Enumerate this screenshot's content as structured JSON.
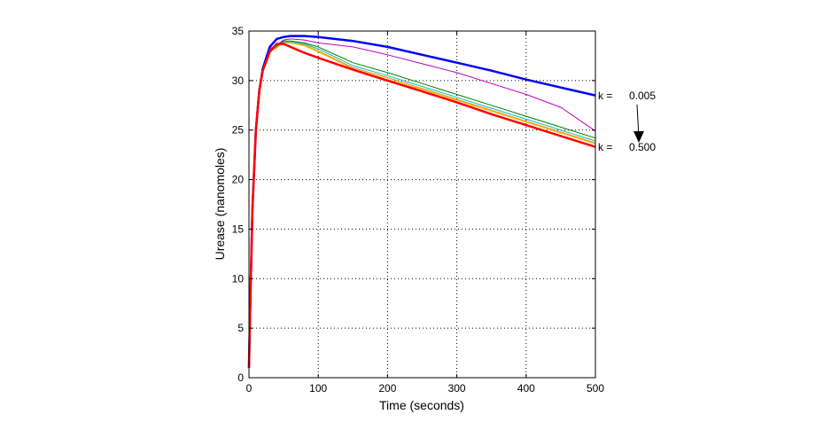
{
  "chart_data": {
    "type": "line",
    "title": "",
    "xlabel": "Time (seconds)",
    "ylabel": "Urease (nanomoles)",
    "xlim": [
      0,
      500
    ],
    "ylim": [
      0,
      35
    ],
    "xticks": [
      0,
      100,
      200,
      300,
      400,
      500
    ],
    "yticks": [
      0,
      5,
      10,
      15,
      20,
      25,
      30,
      35
    ],
    "grid": true,
    "x": [
      0,
      2,
      5,
      10,
      15,
      20,
      30,
      40,
      50,
      60,
      80,
      100,
      150,
      200,
      250,
      300,
      350,
      400,
      450,
      500
    ],
    "series": [
      {
        "name": "k = 0.005",
        "color": "#0000ff",
        "width": 2.5,
        "values": [
          1,
          8,
          17,
          25,
          29,
          31.2,
          33.4,
          34.2,
          34.4,
          34.5,
          34.5,
          34.4,
          34.0,
          33.4,
          32.6,
          31.8,
          31.0,
          30.1,
          29.3,
          28.5
        ]
      },
      {
        "name": "magenta",
        "color": "#bf00bf",
        "width": 1,
        "values": [
          1,
          8,
          17,
          25,
          29,
          31.1,
          33.2,
          33.6,
          34.1,
          34.2,
          34.1,
          33.8,
          33.4,
          32.6,
          31.7,
          30.8,
          29.7,
          28.6,
          27.3,
          24.9
        ]
      },
      {
        "name": "green",
        "color": "#007f00",
        "width": 1,
        "values": [
          1,
          8,
          17,
          25,
          29,
          31.1,
          33.1,
          33.5,
          34.0,
          34.0,
          33.8,
          33.4,
          31.8,
          30.8,
          29.7,
          28.6,
          27.5,
          26.4,
          25.3,
          24.2
        ]
      },
      {
        "name": "cyan",
        "color": "#00bfbf",
        "width": 1,
        "values": [
          1,
          8,
          17,
          25,
          29,
          31.1,
          33.0,
          33.4,
          33.9,
          33.9,
          33.7,
          33.2,
          31.5,
          30.5,
          29.4,
          28.3,
          27.2,
          26.1,
          25.0,
          23.9
        ]
      },
      {
        "name": "orange",
        "color": "#ff8000",
        "width": 1,
        "values": [
          1,
          8,
          17,
          25,
          29,
          31.0,
          33.0,
          33.3,
          33.8,
          33.8,
          33.6,
          33.0,
          31.3,
          30.3,
          29.2,
          28.1,
          27.0,
          25.9,
          24.8,
          23.7
        ]
      },
      {
        "name": "yellow",
        "color": "#e6c000",
        "width": 1,
        "values": [
          1,
          8,
          17,
          25,
          29,
          31.0,
          32.9,
          33.3,
          33.8,
          33.8,
          33.5,
          32.9,
          31.2,
          30.1,
          29.1,
          28.0,
          26.9,
          25.8,
          24.7,
          23.6
        ]
      },
      {
        "name": "k = 0.500",
        "color": "#ff0000",
        "width": 2.5,
        "values": [
          1,
          8,
          17,
          25,
          29,
          31.0,
          32.9,
          33.7,
          33.7,
          33.4,
          32.8,
          32.3,
          31.1,
          30.0,
          28.9,
          27.8,
          26.6,
          25.5,
          24.4,
          23.3
        ]
      }
    ],
    "annotations": {
      "k_label": "k =",
      "k_top": "0.005",
      "k_bottom": "0.500"
    }
  }
}
